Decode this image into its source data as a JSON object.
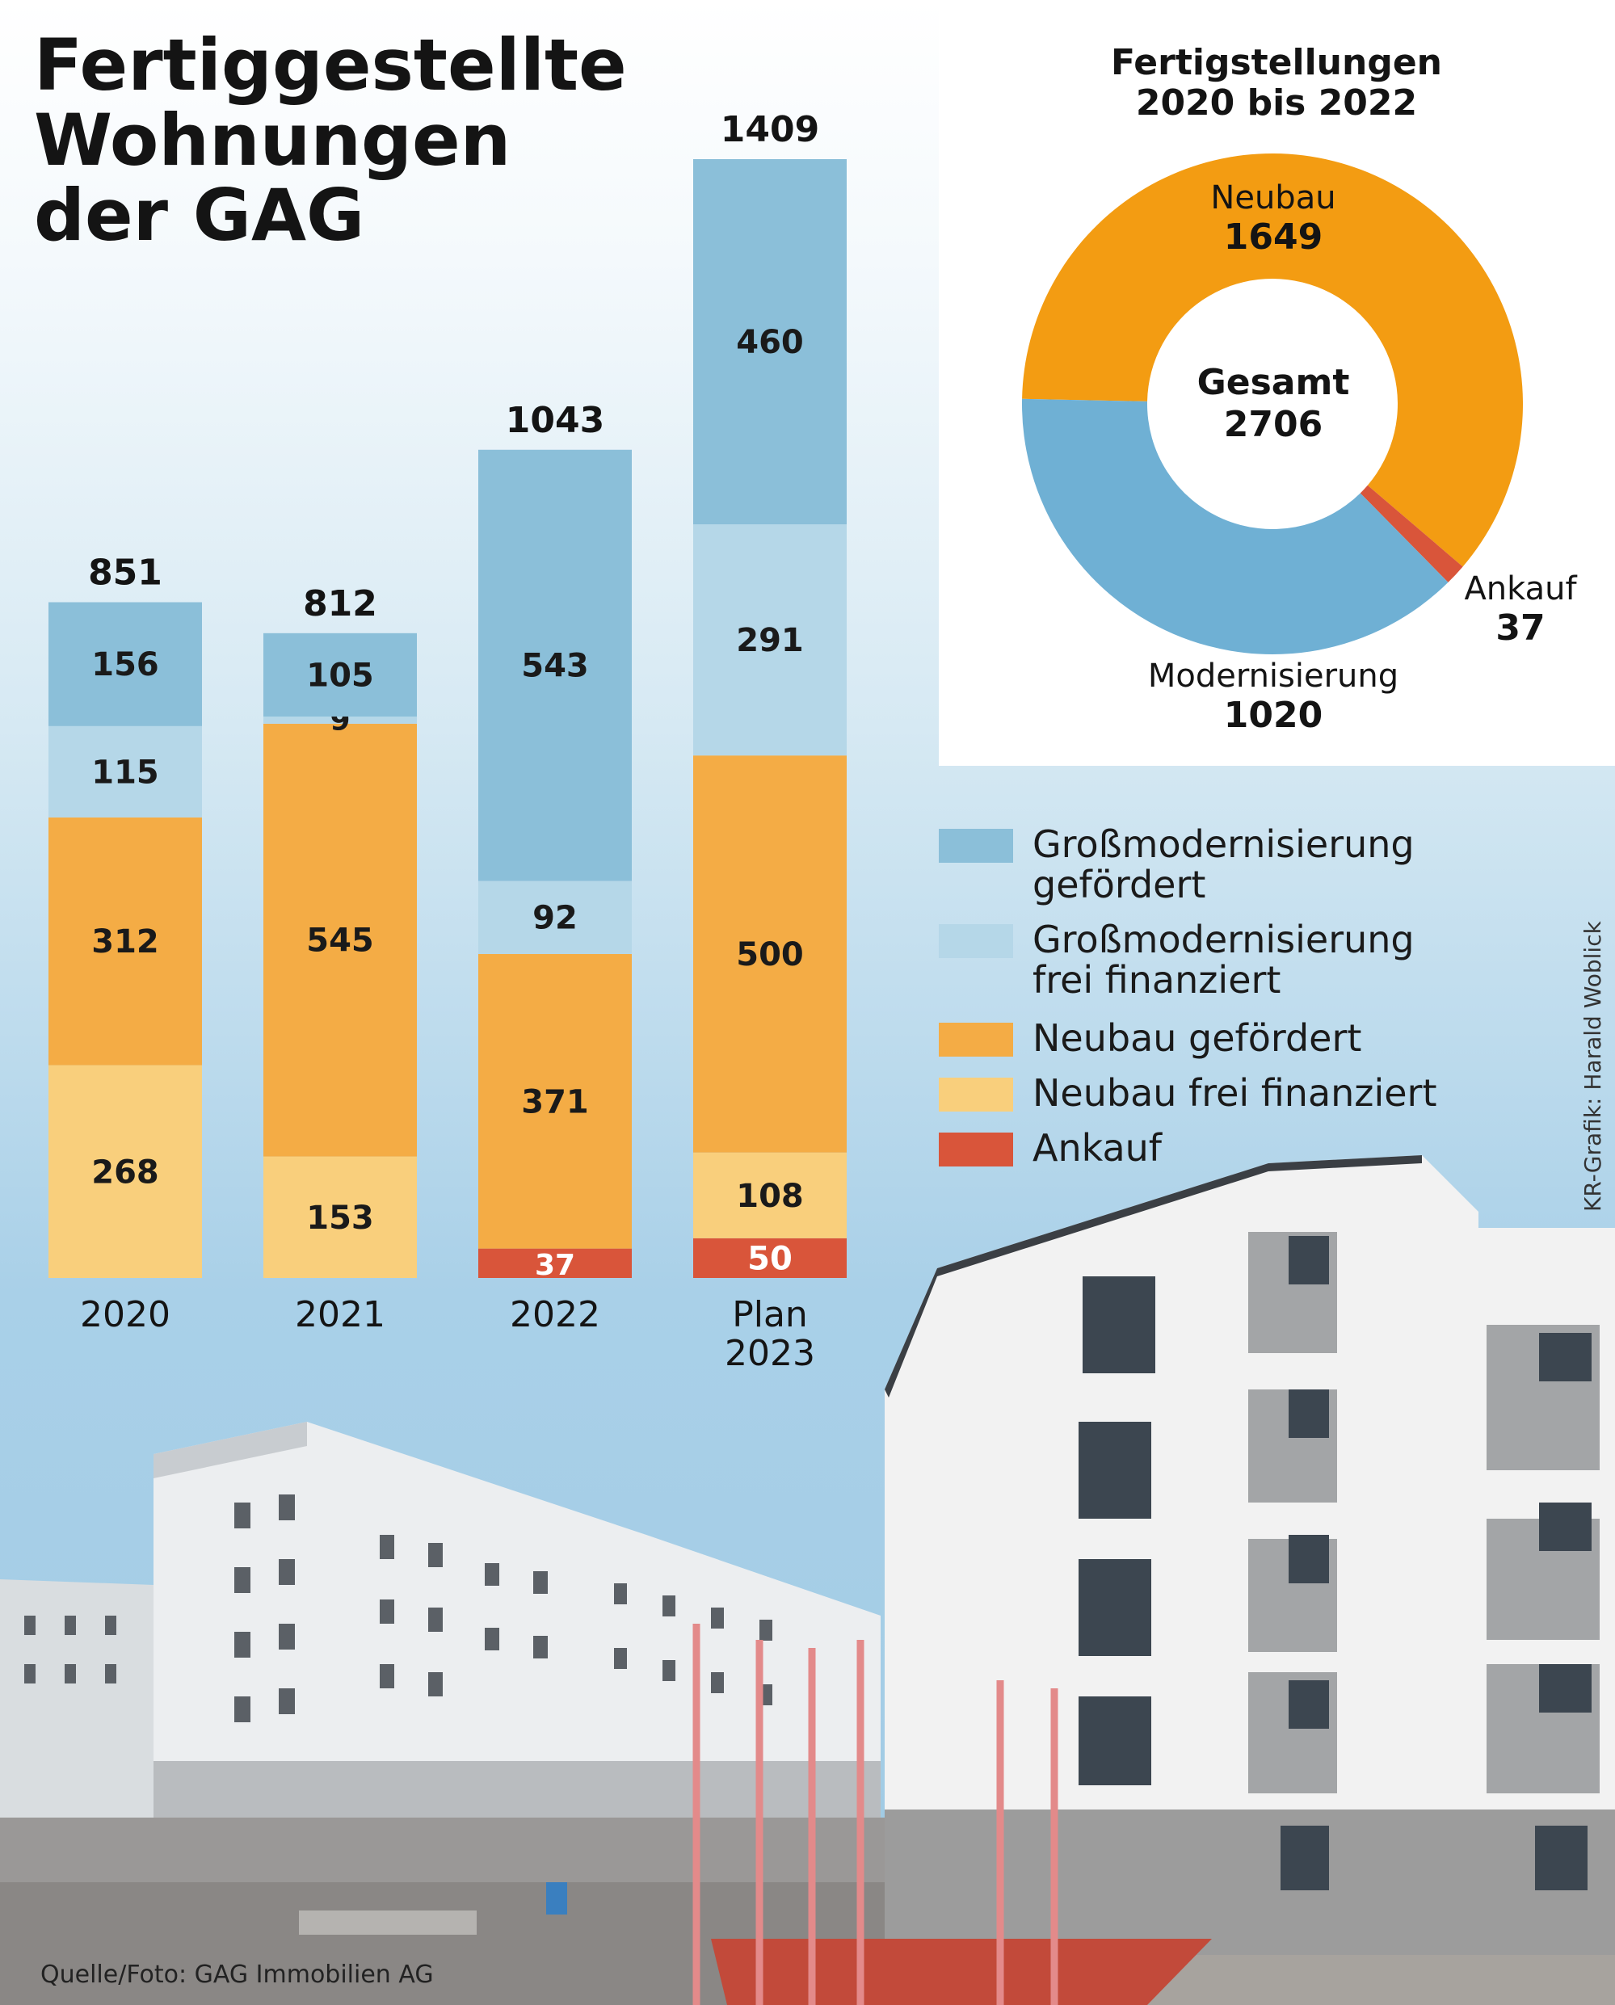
{
  "title_lines": [
    "Fertiggestellte",
    "Wohnungen",
    "der GAG"
  ],
  "colors": {
    "gross_gefoerdert": "#8bbfd9",
    "gross_frei": "#b5d7e8",
    "neubau_gefoerdert": "#f4ac45",
    "neubau_frei": "#f9cf7c",
    "ankauf": "#d9553a",
    "donut_neubau": "#f39c12",
    "donut_modernisierung": "#6fb0d4",
    "donut_ankauf": "#d9553a"
  },
  "chart_data": [
    {
      "type": "bar",
      "stacked": true,
      "title": "Fertiggestellte Wohnungen der GAG",
      "categories": [
        "2020",
        "2021",
        "2022",
        "Plan\n2023"
      ],
      "totals": [
        "851",
        "812",
        "1043",
        "1409"
      ],
      "series": [
        {
          "key": "ankauf",
          "name": "Ankauf",
          "values": [
            0,
            0,
            37,
            50
          ]
        },
        {
          "key": "neubau_frei",
          "name": "Neubau frei finanziert",
          "values": [
            268,
            153,
            0,
            108
          ]
        },
        {
          "key": "neubau_gefoerdert",
          "name": "Neubau gefördert",
          "values": [
            312,
            545,
            371,
            500
          ]
        },
        {
          "key": "gross_frei",
          "name": "Großmodernisierung frei finanziert",
          "values": [
            115,
            9,
            92,
            291
          ]
        },
        {
          "key": "gross_gefoerdert",
          "name": "Großmodernisierung gefördert",
          "values": [
            156,
            105,
            543,
            460
          ]
        }
      ],
      "ylim": [
        0,
        1409
      ]
    },
    {
      "type": "pie",
      "donut": true,
      "title": "Fertigstellungen 2020 bis 2022",
      "center_label": "Gesamt",
      "center_value": "2706",
      "slices": [
        {
          "key": "donut_neubau",
          "name": "Neubau",
          "value": 1649
        },
        {
          "key": "donut_ankauf",
          "name": "Ankauf",
          "value": 37
        },
        {
          "key": "donut_modernisierung",
          "name": "Modernisierung",
          "value": 1020
        }
      ]
    }
  ],
  "donut_title_lines": [
    "Fertigstellungen",
    "2020 bis 2022"
  ],
  "legend": [
    {
      "key": "gross_gefoerdert",
      "lines": [
        "Großmodernisierung",
        "gefördert"
      ]
    },
    {
      "key": "gross_frei",
      "lines": [
        "Großmodernisierung",
        "frei finanziert"
      ]
    },
    {
      "key": "neubau_gefoerdert",
      "lines": [
        "Neubau gefördert"
      ]
    },
    {
      "key": "neubau_frei",
      "lines": [
        "Neubau frei finanziert"
      ]
    },
    {
      "key": "ankauf",
      "lines": [
        "Ankauf"
      ]
    }
  ],
  "credit": "KR-Grafik: Harald Woblick",
  "source": "Quelle/Foto: GAG Immobilien AG"
}
